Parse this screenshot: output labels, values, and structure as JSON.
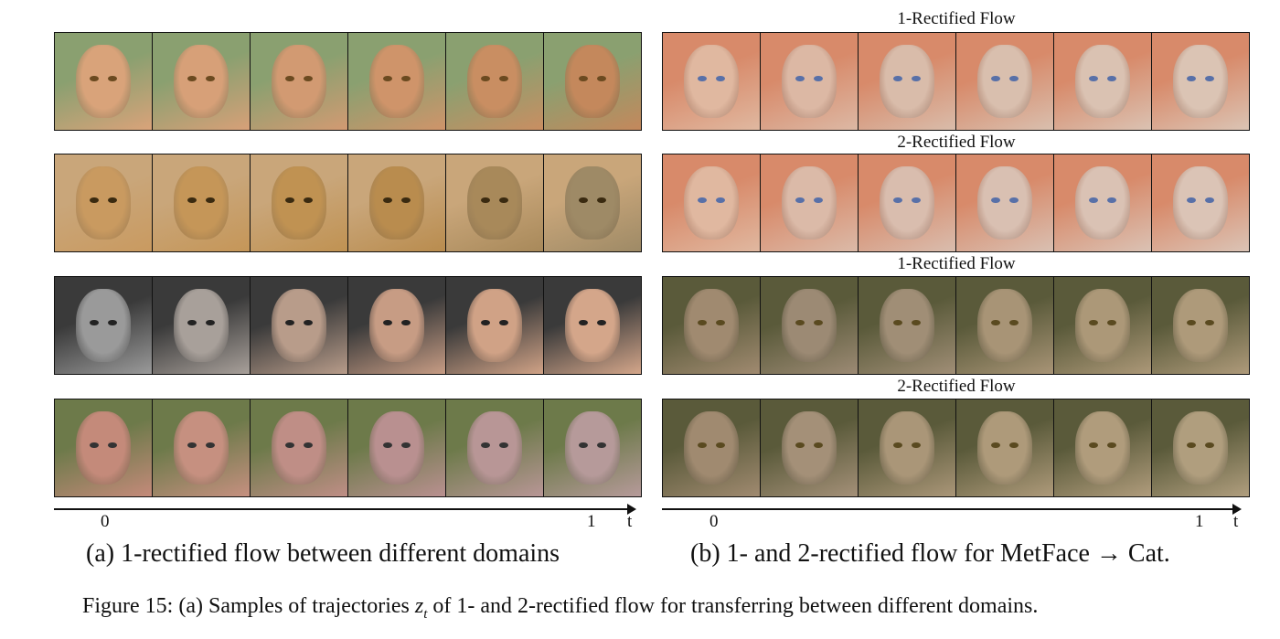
{
  "right_panel": {
    "row_labels": [
      "1-Rectified Flow",
      "2-Rectified Flow",
      "1-Rectified Flow",
      "2-Rectified Flow"
    ]
  },
  "axis_left": {
    "start": "0",
    "end": "1",
    "var": "t"
  },
  "axis_right": {
    "start": "0",
    "end": "1",
    "var": "t"
  },
  "subcaptions": {
    "a": "(a) 1-rectified flow between different domains",
    "b": "(b) 1- and 2-rectified flow for MetFace → Cat."
  },
  "caption": {
    "prefix": "Figure 15: (a) Samples of trajectories ",
    "math": "z",
    "sub": "t",
    "suffix": " of 1- and 2-rectified flow for transferring between different domains."
  },
  "strips": [
    {
      "name": "cat-to-cheetah",
      "colors": [
        "#d9a37a",
        "#d7a078",
        "#d29a72",
        "#cf946a",
        "#c98e62",
        "#c4885c"
      ],
      "bg": "#8aa070",
      "eye": "#6b4a20"
    },
    {
      "name": "cheetah-to-tabby",
      "colors": [
        "#c99a60",
        "#c59658",
        "#c09252",
        "#b98c4e",
        "#a8895a",
        "#9e8a66"
      ],
      "bg": "#c9a67a",
      "eye": "#3a2a10"
    },
    {
      "name": "bw-portrait-to-color",
      "colors": [
        "#9a9a9a",
        "#a8a09a",
        "#b89c8a",
        "#c79c84",
        "#d0a286",
        "#d4a68a"
      ],
      "bg": "#3a3a3a",
      "eye": "#222"
    },
    {
      "name": "granny-to-cat",
      "colors": [
        "#c48a7a",
        "#c69080",
        "#bf8e86",
        "#b99090",
        "#b89696",
        "#b69a9a"
      ],
      "bg": "#6d7a4a",
      "eye": "#333"
    },
    {
      "name": "metface-to-cat-1rf-a",
      "colors": [
        "#e0b8a0",
        "#dcb8a4",
        "#d9bcaa",
        "#d9bfae",
        "#dac2b2",
        "#dbc4b4"
      ],
      "bg": "#d88a6a",
      "eye": "#5870a8"
    },
    {
      "name": "metface-to-cat-2rf-a",
      "colors": [
        "#e0b8a0",
        "#dbbaa8",
        "#d9bdae",
        "#d9c0b2",
        "#dac2b4",
        "#dbc4b6"
      ],
      "bg": "#d88a6a",
      "eye": "#5870a8"
    },
    {
      "name": "metface-to-cat-1rf-b",
      "colors": [
        "#a08a70",
        "#9c8a74",
        "#a08e76",
        "#a89476",
        "#ac9878",
        "#ae9a7a"
      ],
      "bg": "#5a5a3a",
      "eye": "#5a4a20"
    },
    {
      "name": "metface-to-cat-2rf-b",
      "colors": [
        "#a08a70",
        "#a49078",
        "#aa9678",
        "#ae9a7a",
        "#b09c7c",
        "#b09e7e"
      ],
      "bg": "#5a5a3a",
      "eye": "#5a4a20"
    }
  ]
}
